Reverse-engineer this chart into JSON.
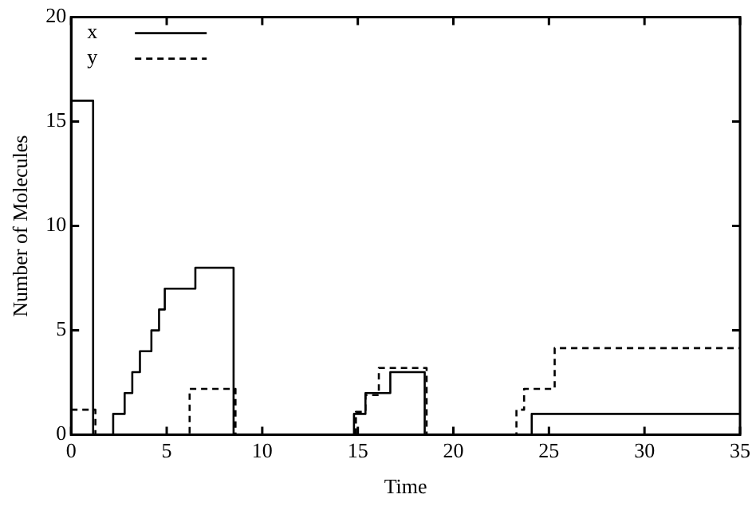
{
  "chart_data": {
    "type": "step",
    "xlabel": "Time",
    "ylabel": "Number of Molecules",
    "xlim": [
      0,
      35
    ],
    "ylim": [
      0,
      20
    ],
    "xticks": [
      0,
      5,
      10,
      15,
      20,
      25,
      30,
      35
    ],
    "yticks": [
      0,
      5,
      10,
      15,
      20
    ],
    "grid": false,
    "legend": "top left",
    "marker": "none",
    "series": [
      {
        "name": "x",
        "color": "#000000",
        "line_style": "solid",
        "x": [
          0,
          1.15,
          2.2,
          2.8,
          3.2,
          3.6,
          4.2,
          4.6,
          4.9,
          6.5,
          8.5,
          14.8,
          15.4,
          16.7,
          18.5,
          24.1,
          35
        ],
        "values": [
          16,
          0,
          1,
          2,
          3,
          4,
          5,
          6,
          7,
          8,
          0,
          1,
          2,
          3,
          0,
          1,
          1
        ]
      },
      {
        "name": "y",
        "color": "#000000",
        "line_style": "dashed",
        "x": [
          0,
          1.27,
          6.2,
          8.6,
          14.9,
          15.4,
          16.1,
          18.6,
          23.3,
          23.7,
          25.3,
          35
        ],
        "values": [
          1.2,
          0,
          2.2,
          0,
          1.1,
          1.9,
          3.2,
          0,
          1.2,
          2.2,
          4.15,
          4.15
        ]
      }
    ]
  }
}
